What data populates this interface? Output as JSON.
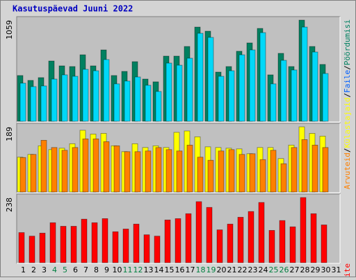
{
  "chart_data": {
    "type": "bar",
    "title": "Kasutuspäevad Juuni 2022",
    "categories": [
      "1",
      "2",
      "3",
      "4",
      "5",
      "6",
      "7",
      "8",
      "9",
      "10",
      "11",
      "12",
      "13",
      "14",
      "15",
      "16",
      "17",
      "18",
      "19",
      "20",
      "21",
      "22",
      "23",
      "24",
      "25",
      "26",
      "27",
      "28",
      "29",
      "30",
      "31"
    ],
    "category_colors": [
      "#000000",
      "#000000",
      "#000000",
      "#008040",
      "#008040",
      "#000000",
      "#000000",
      "#000000",
      "#000000",
      "#000000",
      "#008040",
      "#008040",
      "#000000",
      "#000000",
      "#000000",
      "#000000",
      "#000000",
      "#008040",
      "#008040",
      "#000000",
      "#000000",
      "#000000",
      "#000000",
      "#000000",
      "#008040",
      "#008040",
      "#000000",
      "#000000",
      "#000000",
      "#000000",
      "#000000"
    ],
    "legend_separator": "/",
    "panels": [
      {
        "ylim": [
          0,
          1059
        ],
        "yticks": [
          1059
        ],
        "series": [
          {
            "name": "Pöördumisi",
            "color": "#008060",
            "values": [
              479,
              428,
              457,
              631,
              580,
              573,
              696,
              580,
              747,
              479,
              522,
              624,
              442,
              413,
              682,
              682,
              783,
              986,
              943,
              515,
              573,
              733,
              820,
              972,
              486,
              711,
              573,
              1059,
              783,
              595,
              null
            ]
          },
          {
            "name": "Faile",
            "color": "#00d8f8",
            "values": [
              399,
              363,
              370,
              442,
              486,
              471,
              544,
              529,
              646,
              392,
              421,
              464,
              377,
              312,
              609,
              587,
              660,
              921,
              878,
              471,
              529,
              696,
              747,
              928,
              392,
              638,
              537,
              986,
              725,
              500,
              null
            ]
          }
        ]
      },
      {
        "ylim": [
          0,
          189
        ],
        "yticks": [
          189
        ],
        "series": [
          {
            "name": "Külastajaid",
            "color": "#ffff00",
            "values": [
              101,
              109,
              134,
              123,
              127,
              140,
              179,
              168,
              170,
              134,
              117,
              140,
              129,
              134,
              129,
              173,
              177,
              160,
              131,
              129,
              127,
              125,
              111,
              129,
              129,
              97,
              136,
              189,
              170,
              162,
              null
            ]
          },
          {
            "name": "Arvuteid",
            "color": "#ff8000",
            "values": [
              100,
              109,
              150,
              129,
              121,
              129,
              154,
              154,
              146,
              134,
              117,
              117,
              119,
              129,
              123,
              119,
              136,
              101,
              92,
              119,
              123,
              109,
              111,
              94,
              121,
              82,
              129,
              152,
              136,
              129,
              null
            ]
          }
        ]
      },
      {
        "ylim": [
          0,
          238
        ],
        "yticks": [
          238
        ],
        "series": [
          {
            "name": "KBaite",
            "color": "#ff0000",
            "values": [
              110,
              97,
              108,
              146,
              133,
              133,
              159,
              146,
              161,
              113,
              123,
              141,
              102,
              97,
              156,
              161,
              179,
              223,
              202,
              120,
              141,
              166,
              187,
              220,
              118,
              154,
              131,
              238,
              179,
              138,
              null
            ]
          }
        ]
      }
    ]
  }
}
